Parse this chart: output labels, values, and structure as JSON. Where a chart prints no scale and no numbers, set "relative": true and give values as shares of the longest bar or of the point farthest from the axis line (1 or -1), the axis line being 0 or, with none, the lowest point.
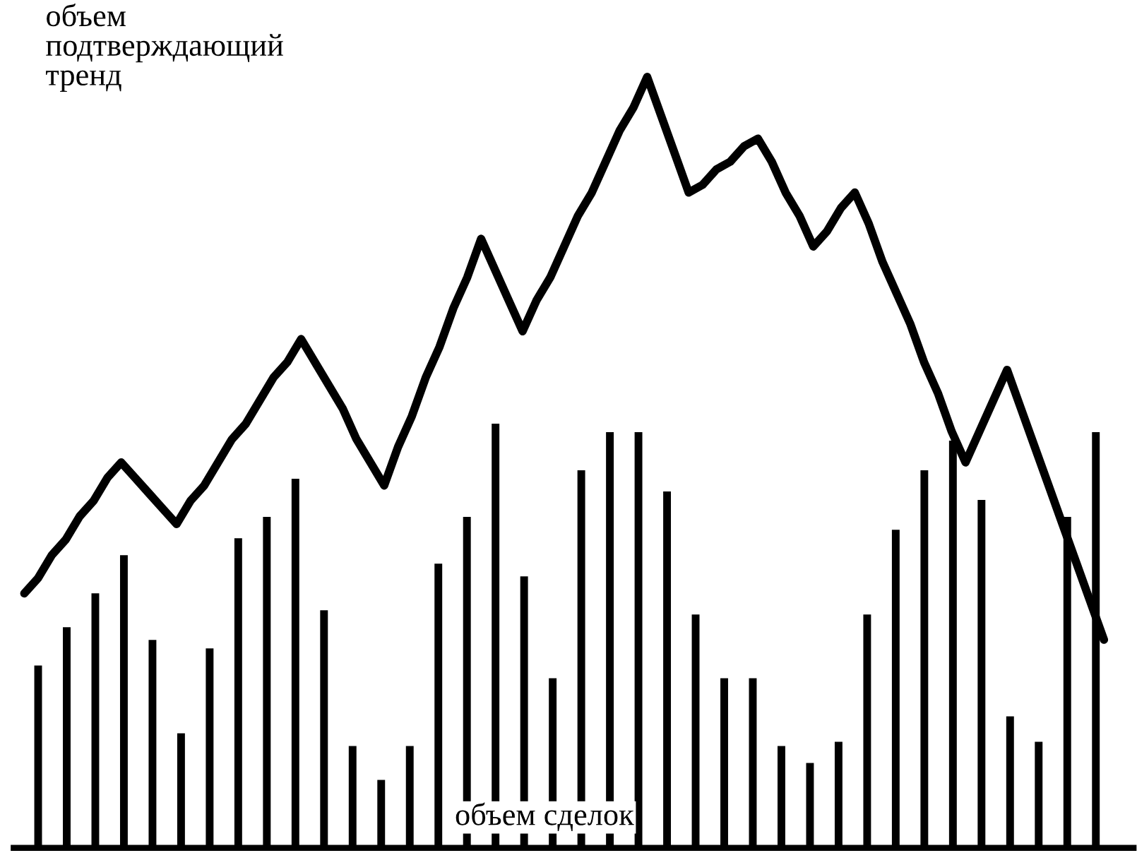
{
  "chart_data": [
    {
      "type": "bar",
      "relative": true,
      "color": "#000000",
      "categories": [
        null,
        null,
        null,
        null,
        null,
        null,
        null,
        null,
        null,
        null,
        null,
        null,
        null,
        null,
        null,
        null,
        null,
        null,
        null,
        null,
        null,
        null,
        null,
        null,
        null,
        null,
        null,
        null,
        null,
        null,
        null,
        null,
        null,
        null,
        null,
        null,
        null,
        null
      ],
      "values": [
        0.43,
        0.52,
        0.6,
        0.69,
        0.49,
        0.27,
        0.47,
        0.73,
        0.78,
        0.87,
        0.56,
        0.24,
        0.16,
        0.24,
        0.67,
        0.78,
        1.0,
        0.64,
        0.4,
        0.89,
        0.98,
        0.98,
        0.84,
        0.55,
        0.4,
        0.4,
        0.24,
        0.2,
        0.25,
        0.55,
        0.75,
        0.89,
        0.96,
        0.82,
        0.31,
        0.25,
        0.78,
        0.98
      ],
      "annotations": [
        "объем сделок"
      ],
      "grid": false,
      "legend": false
    },
    {
      "type": "line",
      "relative": true,
      "color": "#000000",
      "categories": [
        null,
        null,
        null,
        null,
        null,
        null,
        null,
        null,
        null,
        null,
        null,
        null,
        null,
        null,
        null,
        null,
        null,
        null,
        null,
        null,
        null,
        null,
        null,
        null,
        null,
        null,
        null,
        null,
        null,
        null,
        null,
        null,
        null,
        null,
        null,
        null,
        null,
        null,
        null,
        null,
        null,
        null,
        null,
        null,
        null,
        null,
        null,
        null,
        null,
        null,
        null,
        null,
        null,
        null,
        null,
        null,
        null,
        null,
        null,
        null,
        null,
        null,
        null,
        null,
        null,
        null,
        null,
        null,
        null,
        null,
        null,
        null,
        null,
        null,
        null,
        null,
        null,
        null,
        null
      ],
      "values": [
        0.33,
        0.35,
        0.38,
        0.4,
        0.43,
        0.45,
        0.48,
        0.5,
        0.48,
        0.46,
        0.44,
        0.42,
        0.45,
        0.47,
        0.5,
        0.53,
        0.55,
        0.58,
        0.61,
        0.63,
        0.66,
        0.63,
        0.6,
        0.57,
        0.53,
        0.5,
        0.47,
        0.52,
        0.56,
        0.61,
        0.65,
        0.7,
        0.74,
        0.79,
        0.75,
        0.71,
        0.67,
        0.71,
        0.74,
        0.78,
        0.82,
        0.85,
        0.89,
        0.93,
        0.96,
        1.0,
        0.95,
        0.9,
        0.85,
        0.86,
        0.88,
        0.89,
        0.91,
        0.92,
        0.89,
        0.85,
        0.82,
        0.78,
        0.8,
        0.83,
        0.85,
        0.81,
        0.76,
        0.72,
        0.68,
        0.63,
        0.59,
        0.54,
        0.5,
        0.54,
        0.58,
        0.62,
        0.57,
        0.52,
        0.47,
        0.42,
        0.37,
        0.32,
        0.27
      ],
      "annotations": [
        "объем\nподтверждающий\nтренд"
      ],
      "grid": false,
      "legend": false,
      "line_style": "solid",
      "marker": "none"
    }
  ]
}
